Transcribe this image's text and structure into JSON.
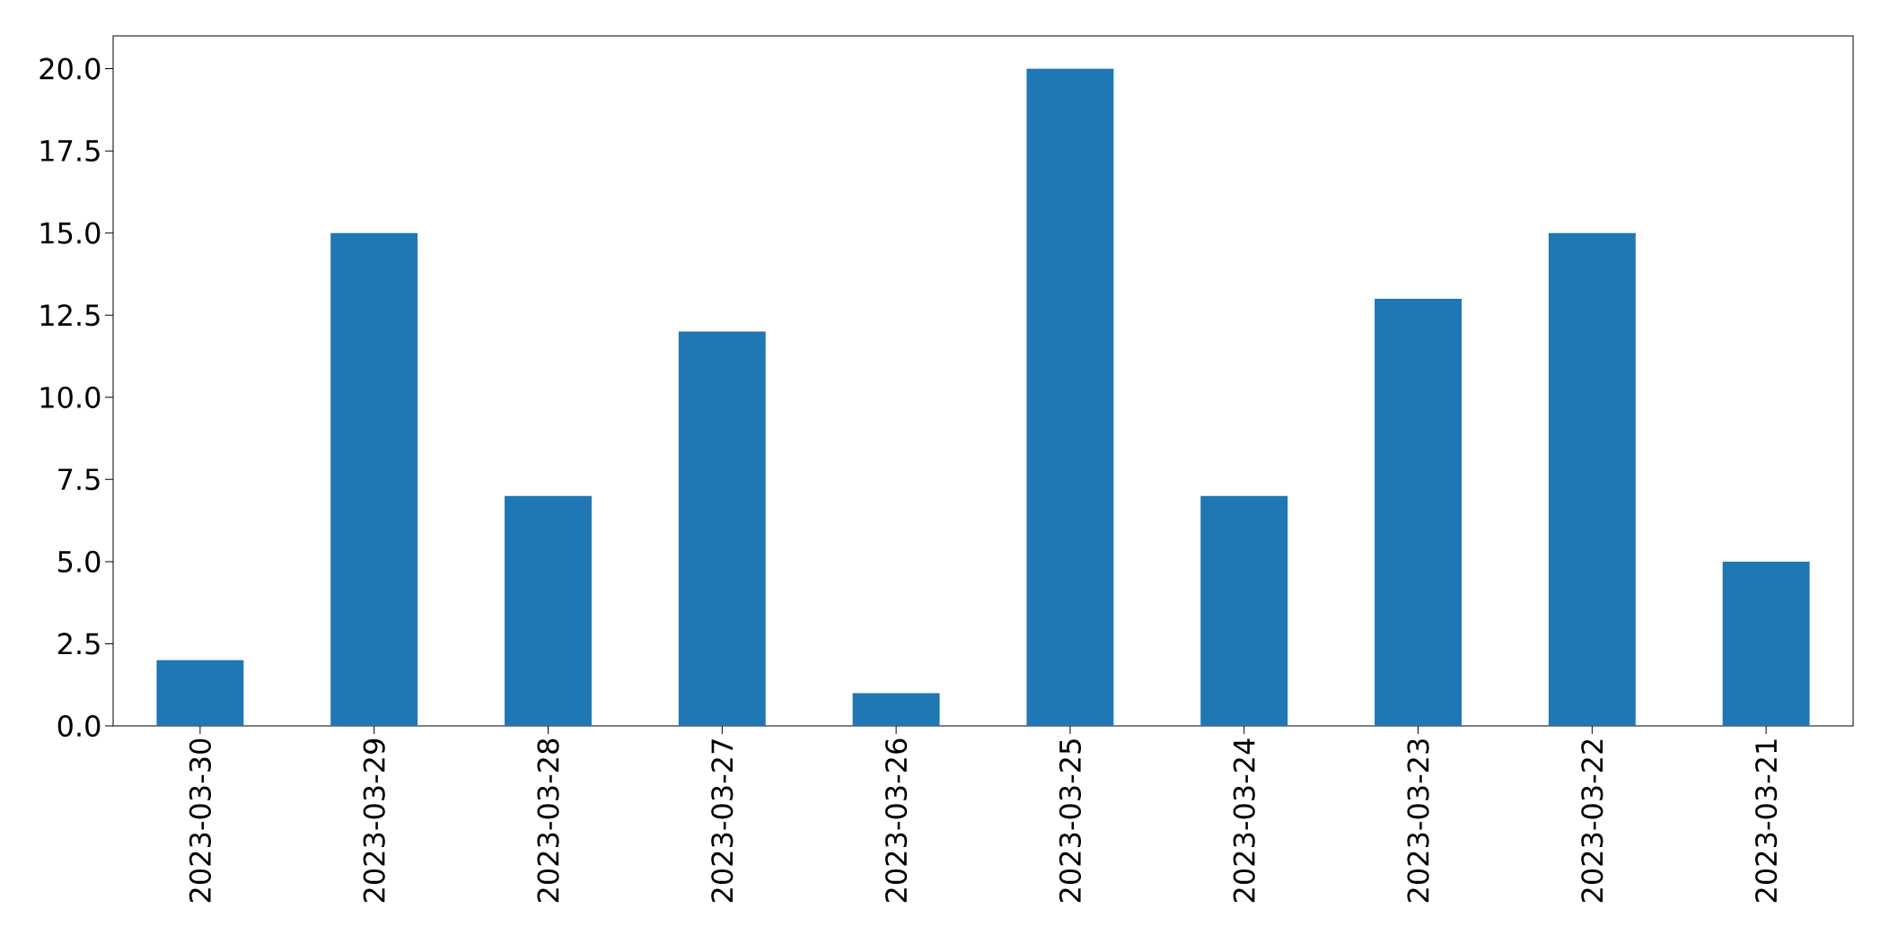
{
  "chart_data": {
    "type": "bar",
    "categories": [
      "2023-03-30",
      "2023-03-29",
      "2023-03-28",
      "2023-03-27",
      "2023-03-26",
      "2023-03-25",
      "2023-03-24",
      "2023-03-23",
      "2023-03-22",
      "2023-03-21"
    ],
    "values": [
      2,
      15,
      7,
      12,
      1,
      20,
      7,
      13,
      15,
      5
    ],
    "color": "#1f77b4",
    "ylim": [
      0,
      21
    ],
    "yticks": [
      {
        "value": 0,
        "label": "0.0"
      },
      {
        "value": 2.5,
        "label": "2.5"
      },
      {
        "value": 5,
        "label": "5.0"
      },
      {
        "value": 7.5,
        "label": "7.5"
      },
      {
        "value": 10,
        "label": "10.0"
      },
      {
        "value": 12.5,
        "label": "12.5"
      },
      {
        "value": 15,
        "label": "15.0"
      },
      {
        "value": 17.5,
        "label": "17.5"
      },
      {
        "value": 20,
        "label": "20.0"
      }
    ]
  }
}
